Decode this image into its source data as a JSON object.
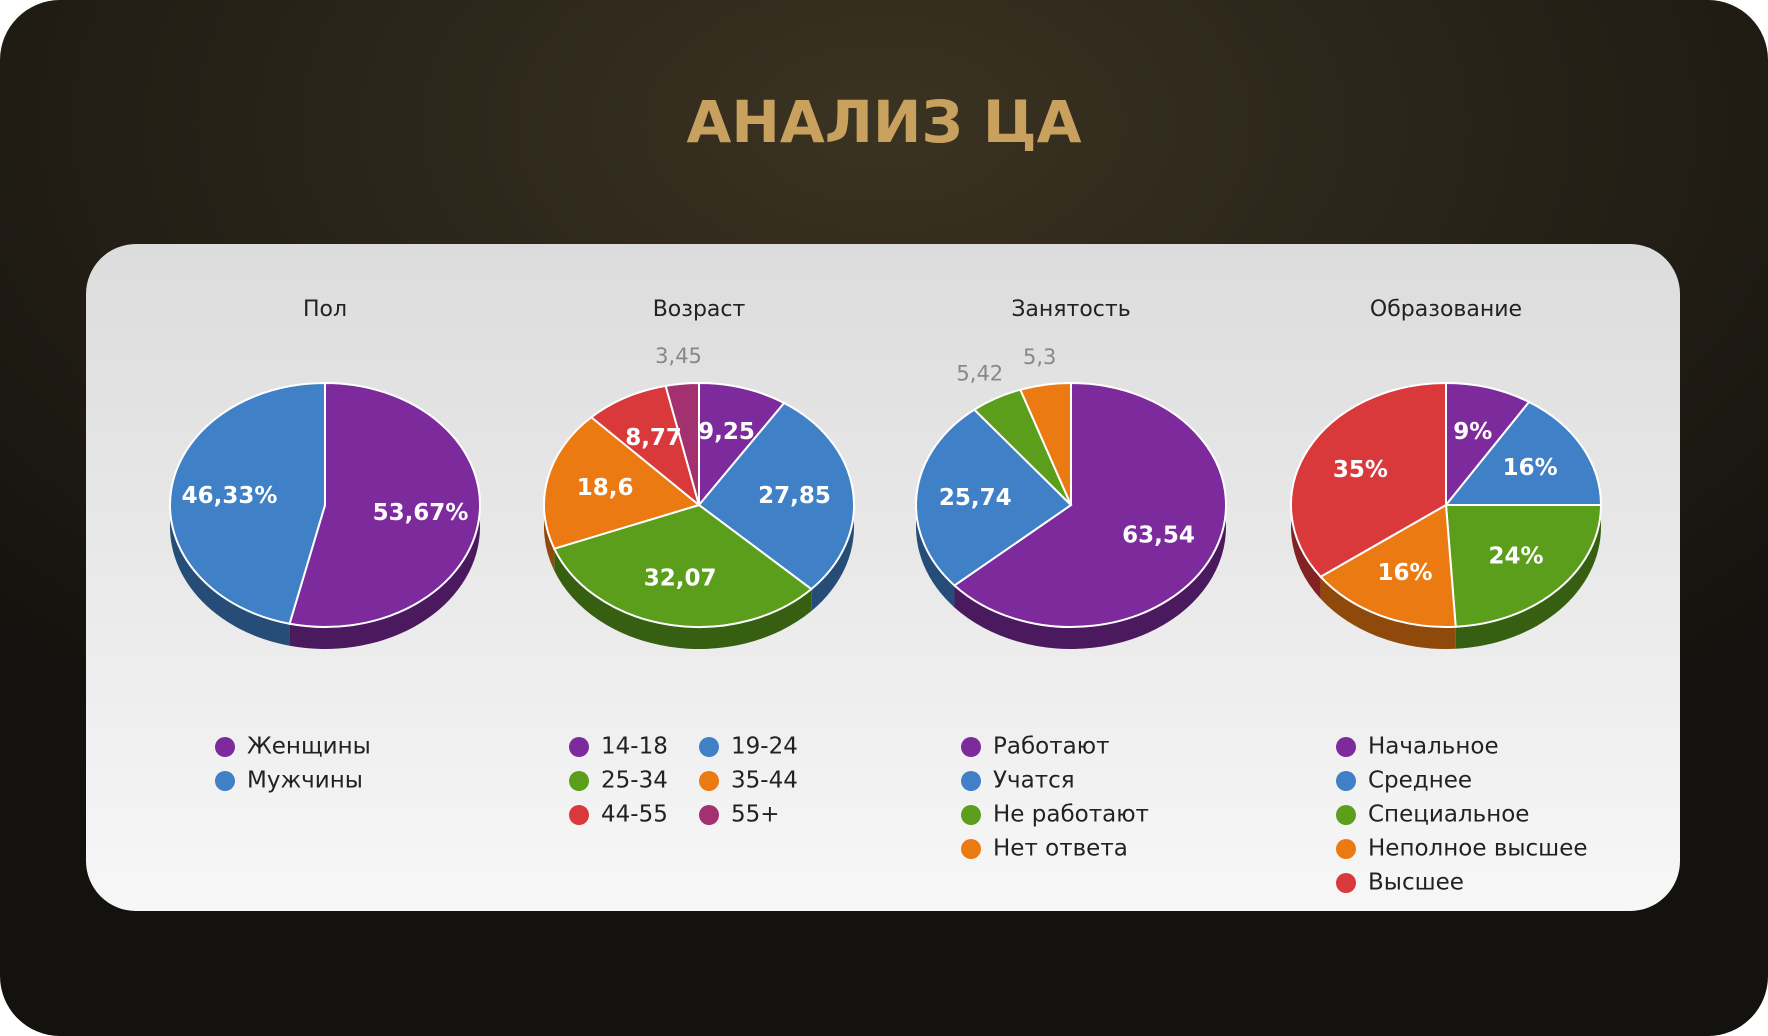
{
  "title": "АНАЛИЗ ЦА",
  "chart_data": [
    {
      "type": "pie",
      "title": "Пол",
      "categories": [
        "Женщины",
        "Мужчины"
      ],
      "values": [
        53.67,
        46.33
      ],
      "value_labels": [
        "53,67%",
        "46,33%"
      ],
      "colors": [
        "#7d2a9c",
        "#3f80c6"
      ]
    },
    {
      "type": "pie",
      "title": "Возраст",
      "categories": [
        "14-18",
        "19-24",
        "25-34",
        "35-44",
        "44-55",
        "55+"
      ],
      "values": [
        9.25,
        27.85,
        32.07,
        18.6,
        8.77,
        3.45
      ],
      "value_labels": [
        "9,25",
        "27,85",
        "32,07",
        "18,6",
        "8,77",
        "3,45"
      ],
      "colors": [
        "#7d2a9c",
        "#3f80c6",
        "#5a9e1c",
        "#ec7a12",
        "#d9393b",
        "#a3306f"
      ]
    },
    {
      "type": "pie",
      "title": "Занятость",
      "categories": [
        "Работают",
        "Учатся",
        "Не работают",
        "Нет ответа"
      ],
      "values": [
        63.54,
        25.74,
        5.42,
        5.3
      ],
      "value_labels": [
        "63,54",
        "25,74",
        "5,42",
        "5,3"
      ],
      "colors": [
        "#7d2a9c",
        "#3f80c6",
        "#5a9e1c",
        "#ec7a12"
      ]
    },
    {
      "type": "pie",
      "title": "Образование",
      "categories": [
        "Начальное",
        "Среднее",
        "Специальное",
        "Неполное высшее",
        "Высшее"
      ],
      "values": [
        9,
        16,
        24,
        16,
        35
      ],
      "value_labels": [
        "9%",
        "16%",
        "24%",
        "16%",
        "35%"
      ],
      "colors": [
        "#7d2a9c",
        "#3f80c6",
        "#5a9e1c",
        "#ec7a12",
        "#d9393b"
      ]
    }
  ]
}
